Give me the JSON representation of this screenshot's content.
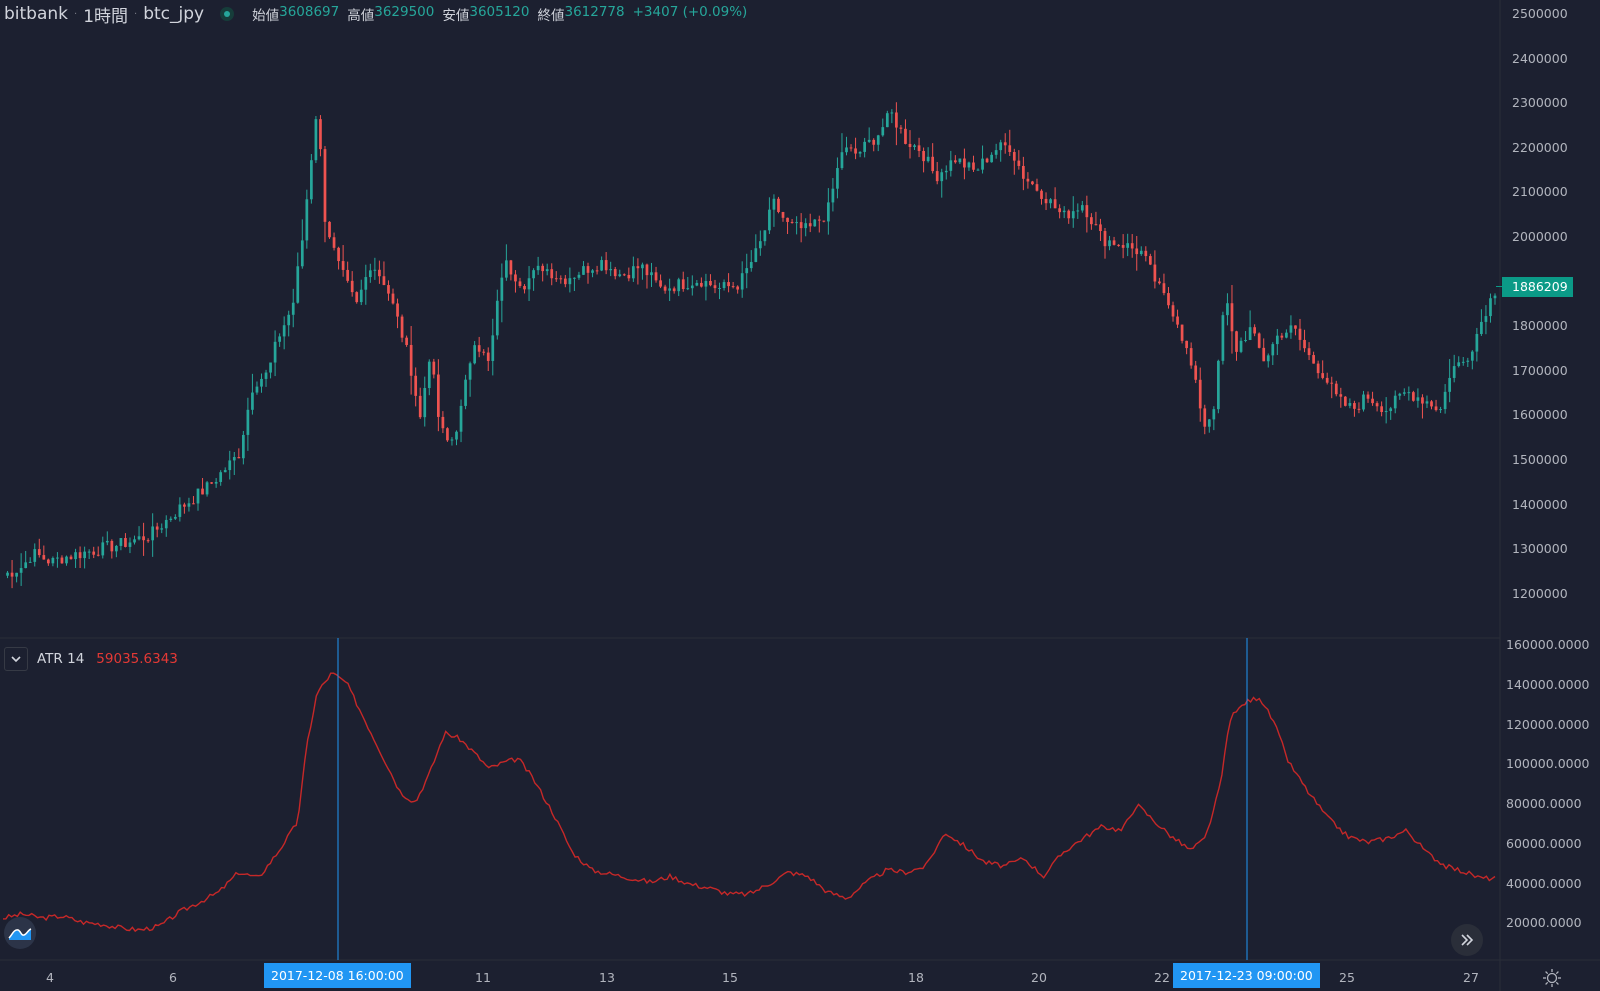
{
  "header": {
    "exchange": "bitbank",
    "interval": "1時間",
    "symbol": "btc_jpy",
    "ohlc": {
      "open_label": "始値",
      "open": "3608697",
      "high_label": "高値",
      "high": "3629500",
      "low_label": "安値",
      "low": "3605120",
      "close_label": "終値",
      "close": "3612778",
      "change": "+3407 (+0.09%)"
    }
  },
  "colors": {
    "up": "#26a69a",
    "down": "#ef5350",
    "atr_line": "#c62828",
    "crosshair": "#2196f3",
    "background": "#1c2030",
    "grid": "#2a2e39"
  },
  "price_axis": {
    "labels": [
      "2500000",
      "2400000",
      "2300000",
      "2200000",
      "2100000",
      "2000000",
      "1886209",
      "1800000",
      "1700000",
      "1600000",
      "1500000",
      "1400000",
      "1300000",
      "1200000"
    ],
    "current_price": "1886209"
  },
  "atr_panel": {
    "name": "ATR 14",
    "value": "59035.6343",
    "axis_labels": [
      "160000.0000",
      "140000.0000",
      "120000.0000",
      "100000.0000",
      "80000.0000",
      "60000.0000",
      "40000.0000",
      "20000.0000"
    ]
  },
  "time_axis": {
    "labels": [
      "4",
      "6",
      "11",
      "13",
      "15",
      "18",
      "20",
      "22",
      "25",
      "27"
    ],
    "crosshair_labels": [
      "2017-12-08   16:00:00",
      "2017-12-23   09:00:00"
    ]
  },
  "chart_data": [
    {
      "type": "candlestick",
      "title": "btc_jpy 1時間",
      "ylim": [
        1150000,
        2500000
      ],
      "x_ticks": [
        "4",
        "6",
        "11",
        "13",
        "15",
        "18",
        "20",
        "22",
        "25",
        "27"
      ],
      "close_path": [
        [
          0,
          1250000
        ],
        [
          2,
          1270000
        ],
        [
          3,
          1300000
        ],
        [
          5,
          1280000
        ],
        [
          6,
          1290000
        ],
        [
          8,
          1300000
        ],
        [
          10,
          1310000
        ],
        [
          12,
          1320000
        ],
        [
          15,
          1340000
        ],
        [
          18,
          1400000
        ],
        [
          21,
          1450000
        ],
        [
          24,
          1520000
        ],
        [
          25.5,
          1680000
        ],
        [
          27,
          1700000
        ],
        [
          28,
          1780000
        ],
        [
          29.5,
          1850000
        ],
        [
          30.5,
          2000000
        ],
        [
          32,
          2300000
        ],
        [
          32.8,
          2050000
        ],
        [
          34,
          1950000
        ],
        [
          35,
          1900000
        ],
        [
          36,
          1850000
        ],
        [
          37.5,
          1950000
        ],
        [
          39,
          1900000
        ],
        [
          40.5,
          1800000
        ],
        [
          41.5,
          1720000
        ],
        [
          42.5,
          1600000
        ],
        [
          43.5,
          1750000
        ],
        [
          44.5,
          1580000
        ],
        [
          45.5,
          1540000
        ],
        [
          46.5,
          1600000
        ],
        [
          48,
          1780000
        ],
        [
          49.5,
          1720000
        ],
        [
          51,
          1950000
        ],
        [
          53,
          1900000
        ],
        [
          55,
          1940000
        ],
        [
          57,
          1910000
        ],
        [
          59,
          1930000
        ],
        [
          61,
          1950000
        ],
        [
          63,
          1920000
        ],
        [
          65,
          1940000
        ],
        [
          67,
          1890000
        ],
        [
          69,
          1900000
        ],
        [
          71,
          1910000
        ],
        [
          73,
          1890000
        ],
        [
          75,
          1900000
        ],
        [
          77,
          1980000
        ],
        [
          78.5,
          2080000
        ],
        [
          80,
          2030000
        ],
        [
          82,
          2020000
        ],
        [
          84,
          2060000
        ],
        [
          85.5,
          2200000
        ],
        [
          87,
          2190000
        ],
        [
          89,
          2230000
        ],
        [
          90.5,
          2280000
        ],
        [
          92,
          2220000
        ],
        [
          93.5,
          2200000
        ],
        [
          95,
          2140000
        ],
        [
          97,
          2180000
        ],
        [
          99,
          2150000
        ],
        [
          101,
          2200000
        ],
        [
          102.5,
          2210000
        ],
        [
          104,
          2140000
        ],
        [
          106,
          2100000
        ],
        [
          108,
          2050000
        ],
        [
          110,
          2080000
        ],
        [
          112,
          2000000
        ],
        [
          114,
          1990000
        ],
        [
          116,
          1970000
        ],
        [
          118,
          1880000
        ],
        [
          119.5,
          1830000
        ],
        [
          121,
          1720000
        ],
        [
          122.5,
          1580000
        ],
        [
          123.5,
          1640000
        ],
        [
          124.5,
          1880000
        ],
        [
          125.5,
          1750000
        ],
        [
          127,
          1800000
        ],
        [
          128.5,
          1730000
        ],
        [
          130,
          1790000
        ],
        [
          131.5,
          1800000
        ],
        [
          133,
          1740000
        ],
        [
          134.5,
          1700000
        ],
        [
          136,
          1640000
        ],
        [
          137.5,
          1620000
        ],
        [
          139,
          1650000
        ],
        [
          141,
          1620000
        ],
        [
          143,
          1660000
        ],
        [
          145,
          1640000
        ],
        [
          146.5,
          1620000
        ],
        [
          147.5,
          1710000
        ],
        [
          149,
          1730000
        ],
        [
          150,
          1780000
        ],
        [
          151,
          1840000
        ],
        [
          152,
          1886209
        ]
      ]
    },
    {
      "type": "line",
      "title": "ATR 14",
      "ylim": [
        0,
        160000
      ],
      "values_path": [
        [
          0,
          22000
        ],
        [
          2,
          24000
        ],
        [
          4,
          22000
        ],
        [
          6,
          23000
        ],
        [
          8,
          20000
        ],
        [
          10,
          19000
        ],
        [
          12,
          17000
        ],
        [
          14,
          16000
        ],
        [
          16,
          18000
        ],
        [
          18,
          25000
        ],
        [
          20,
          30000
        ],
        [
          22,
          35000
        ],
        [
          24,
          45000
        ],
        [
          26,
          42000
        ],
        [
          28,
          55000
        ],
        [
          30,
          70000
        ],
        [
          31,
          110000
        ],
        [
          32,
          135000
        ],
        [
          33.5,
          145000
        ],
        [
          35,
          140000
        ],
        [
          37,
          120000
        ],
        [
          39,
          100000
        ],
        [
          40.5,
          85000
        ],
        [
          42,
          80000
        ],
        [
          43.5,
          95000
        ],
        [
          45,
          115000
        ],
        [
          46.5,
          112000
        ],
        [
          48,
          105000
        ],
        [
          49.5,
          97000
        ],
        [
          51,
          100000
        ],
        [
          52.5,
          102000
        ],
        [
          54,
          92000
        ],
        [
          56,
          75000
        ],
        [
          58,
          55000
        ],
        [
          60,
          46000
        ],
        [
          62,
          44000
        ],
        [
          64,
          42000
        ],
        [
          66,
          40000
        ],
        [
          68,
          43000
        ],
        [
          70,
          39000
        ],
        [
          72,
          37000
        ],
        [
          74,
          34000
        ],
        [
          76,
          34000
        ],
        [
          78,
          39000
        ],
        [
          80,
          45000
        ],
        [
          82,
          43000
        ],
        [
          84,
          35000
        ],
        [
          86,
          32000
        ],
        [
          88,
          40000
        ],
        [
          90,
          46000
        ],
        [
          92,
          45000
        ],
        [
          94,
          48000
        ],
        [
          96,
          65000
        ],
        [
          98,
          58000
        ],
        [
          100,
          50000
        ],
        [
          102,
          48000
        ],
        [
          104,
          52000
        ],
        [
          106,
          43000
        ],
        [
          108,
          55000
        ],
        [
          110,
          62000
        ],
        [
          112,
          68000
        ],
        [
          114,
          66000
        ],
        [
          115.5,
          79000
        ],
        [
          117,
          72000
        ],
        [
          119,
          63000
        ],
        [
          121,
          56000
        ],
        [
          122.5,
          62000
        ],
        [
          124,
          88000
        ],
        [
          125,
          122000
        ],
        [
          126.5,
          130000
        ],
        [
          128,
          133000
        ],
        [
          129.5,
          120000
        ],
        [
          131,
          100000
        ],
        [
          133,
          85000
        ],
        [
          135,
          72000
        ],
        [
          137,
          63000
        ],
        [
          139,
          60000
        ],
        [
          141,
          62000
        ],
        [
          143,
          66000
        ],
        [
          145,
          55000
        ],
        [
          147,
          48000
        ],
        [
          149,
          45000
        ],
        [
          150.5,
          42000
        ],
        [
          152,
          42000
        ]
      ],
      "crosshair_points": [
        "2017-12-08 16:00:00",
        "2017-12-23 09:00:00"
      ]
    }
  ]
}
